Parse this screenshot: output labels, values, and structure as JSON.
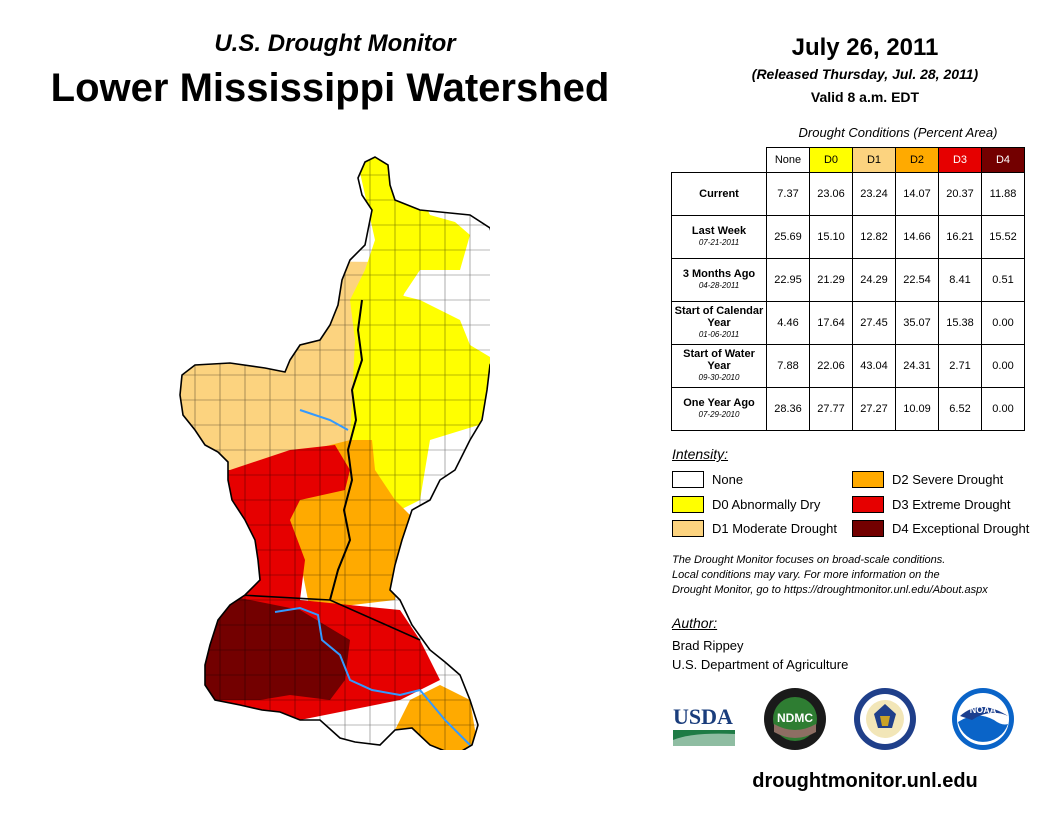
{
  "header": {
    "subtitle": "U.S. Drought Monitor",
    "title": "Lower Mississippi Watershed",
    "date": "July 26, 2011",
    "released": "(Released Thursday, Jul. 28, 2011)",
    "valid": "Valid 8 a.m. EDT"
  },
  "table": {
    "title": "Drought Conditions (Percent Area)",
    "columns": [
      "None",
      "D0",
      "D1",
      "D2",
      "D3",
      "D4"
    ],
    "column_colors": [
      "#ffffff",
      "#ffff00",
      "#fcd37f",
      "#ffaa00",
      "#e60000",
      "#730000"
    ],
    "rows": [
      {
        "label": "Current",
        "date": "",
        "values": [
          "7.37",
          "23.06",
          "23.24",
          "14.07",
          "20.37",
          "11.88"
        ]
      },
      {
        "label": "Last Week",
        "date": "07-21-2011",
        "values": [
          "25.69",
          "15.10",
          "12.82",
          "14.66",
          "16.21",
          "15.52"
        ]
      },
      {
        "label": "3 Months Ago",
        "date": "04-28-2011",
        "values": [
          "22.95",
          "21.29",
          "24.29",
          "22.54",
          "8.41",
          "0.51"
        ]
      },
      {
        "label": "Start of Calendar Year",
        "date": "01-06-2011",
        "values": [
          "4.46",
          "17.64",
          "27.45",
          "35.07",
          "15.38",
          "0.00"
        ]
      },
      {
        "label": "Start of Water Year",
        "date": "09-30-2010",
        "values": [
          "7.88",
          "22.06",
          "43.04",
          "24.31",
          "2.71",
          "0.00"
        ]
      },
      {
        "label": "One Year Ago",
        "date": "07-29-2010",
        "values": [
          "28.36",
          "27.77",
          "27.27",
          "10.09",
          "6.52",
          "0.00"
        ]
      }
    ]
  },
  "legend": {
    "title": "Intensity:",
    "items": [
      {
        "label": "None",
        "color": "#ffffff"
      },
      {
        "label": "D0 Abnormally Dry",
        "color": "#ffff00"
      },
      {
        "label": "D1 Moderate Drought",
        "color": "#fcd37f"
      },
      {
        "label": "D2 Severe Drought",
        "color": "#ffaa00"
      },
      {
        "label": "D3 Extreme Drought",
        "color": "#e60000"
      },
      {
        "label": "D4 Exceptional Drought",
        "color": "#730000"
      }
    ]
  },
  "note": {
    "line1": "The Drought Monitor focuses on broad-scale conditions.",
    "line2": "Local conditions may vary. For more information on the",
    "line3": "Drought Monitor, go to https://droughtmonitor.unl.edu/About.aspx"
  },
  "author": {
    "label": "Author:",
    "name": "Brad Rippey",
    "org": "U.S. Department of Agriculture"
  },
  "logos": {
    "usda": "USDA",
    "ndmc": "NDMC",
    "noaa": "NOAA"
  },
  "footer": {
    "url": "droughtmonitor.unl.edu"
  }
}
